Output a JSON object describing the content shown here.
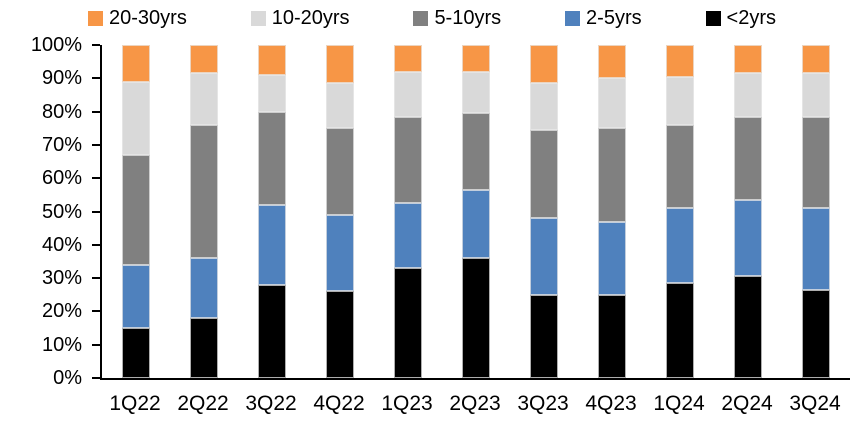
{
  "chart_data": {
    "type": "bar",
    "variant": "stacked-100pct",
    "title": "",
    "xlabel": "",
    "ylabel": "",
    "unit": "%",
    "grid": false,
    "legend_position": "top",
    "ylim": [
      0,
      100
    ],
    "y_ticks": [
      "0%",
      "10%",
      "20%",
      "30%",
      "40%",
      "50%",
      "60%",
      "70%",
      "80%",
      "90%",
      "100%"
    ],
    "categories": [
      "1Q22",
      "2Q22",
      "3Q22",
      "4Q22",
      "1Q23",
      "2Q23",
      "3Q23",
      "4Q23",
      "1Q24",
      "2Q24",
      "3Q24"
    ],
    "series": [
      {
        "name": "<2yrs",
        "color": "#000000",
        "values": [
          15,
          18,
          28,
          26,
          33,
          36,
          25,
          25,
          28.5,
          30.5,
          26.5
        ]
      },
      {
        "name": "2-5yrs",
        "color": "#4F81BD",
        "values": [
          19,
          18,
          24,
          23,
          19.5,
          20.5,
          23,
          22,
          22.5,
          23,
          24.5
        ]
      },
      {
        "name": "5-10yrs",
        "color": "#808080",
        "values": [
          33,
          40,
          28,
          26,
          26,
          23,
          26.5,
          28,
          25,
          25,
          27.5
        ]
      },
      {
        "name": "10-20yrs",
        "color": "#D9D9D9",
        "values": [
          22,
          15.5,
          11,
          13.5,
          13.5,
          12.5,
          14,
          15,
          14.5,
          13,
          13
        ]
      },
      {
        "name": "20-30yrs",
        "color": "#F79646",
        "values": [
          11,
          8.5,
          9,
          11.5,
          8,
          8,
          11.5,
          10,
          9.5,
          8.5,
          8.5
        ]
      }
    ],
    "legend_order": [
      "20-30yrs",
      "10-20yrs",
      "5-10yrs",
      "2-5yrs",
      "<2yrs"
    ],
    "axis_color": "#000000",
    "background_color": "#FFFFFF"
  }
}
